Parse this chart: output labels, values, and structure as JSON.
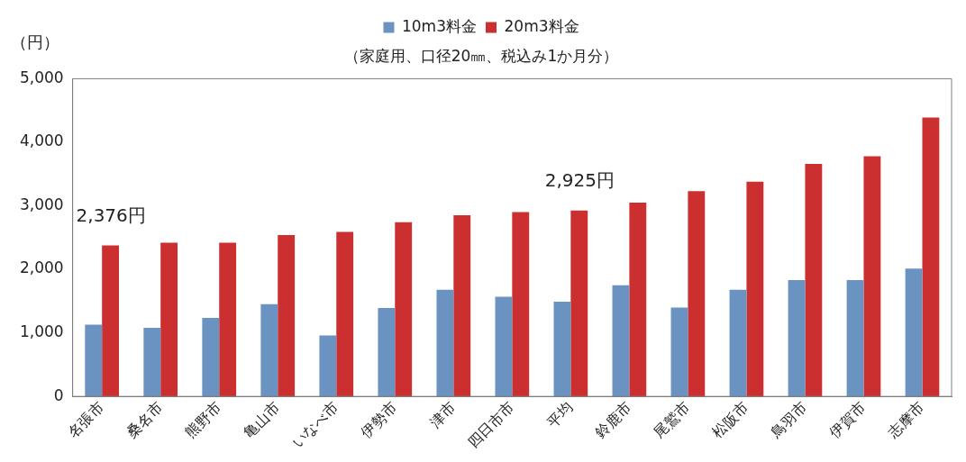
{
  "chart_data": {
    "type": "bar",
    "subtitle": "（家庭用、口径20㎜、税込み1か月分）",
    "ylabel": "（円）",
    "categories": [
      "名張市",
      "桑名市",
      "熊野市",
      "亀山市",
      "いなべ市",
      "伊勢市",
      "津市",
      "四日市市",
      "平均",
      "鈴鹿市",
      "尾鷲市",
      "松阪市",
      "鳥羽市",
      "伊賀市",
      "志摩市"
    ],
    "series": [
      {
        "name": "10m3料金",
        "color": "#6a93c2",
        "values": [
          1130,
          1080,
          1235,
          1450,
          960,
          1390,
          1680,
          1570,
          1490,
          1750,
          1400,
          1680,
          1830,
          1830,
          2010
        ]
      },
      {
        "name": "20m3料金",
        "color": "#cc2f2f",
        "values": [
          2376,
          2420,
          2420,
          2540,
          2590,
          2740,
          2850,
          2900,
          2925,
          3050,
          3230,
          3380,
          3660,
          3780,
          4390
        ]
      }
    ],
    "ylim": [
      0,
      5000
    ],
    "yticks": [
      {
        "value": 0,
        "label": "0"
      },
      {
        "value": 1000,
        "label": "1,000"
      },
      {
        "value": 2000,
        "label": "2,000"
      },
      {
        "value": 3000,
        "label": "3,000"
      },
      {
        "value": 4000,
        "label": "4,000"
      },
      {
        "value": 5000,
        "label": "5,000"
      }
    ],
    "annotations": [
      {
        "text": "2,376円",
        "x": "名張市",
        "y": 2376
      },
      {
        "text": "2,925円",
        "x": "平均",
        "y": 2925
      }
    ],
    "grid": false,
    "legend": "top"
  }
}
